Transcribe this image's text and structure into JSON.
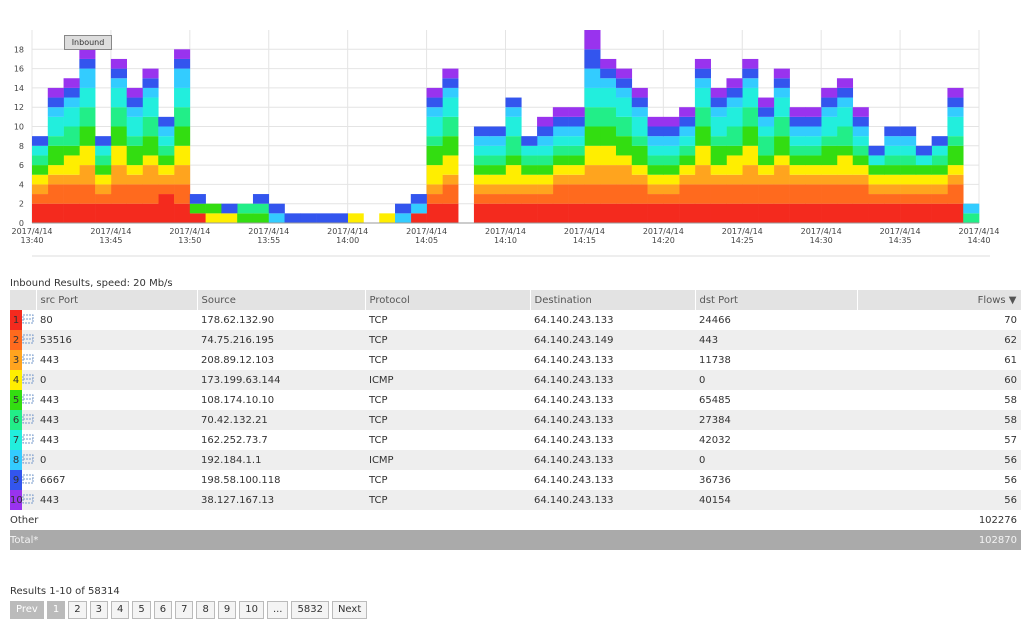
{
  "chart_data": {
    "type": "stacked-step-bar",
    "tooltip": "Inbound",
    "categories": [
      [
        "2017/4/14",
        "13:40"
      ],
      null,
      null,
      null,
      null,
      [
        "2017/4/14",
        "13:45"
      ],
      null,
      null,
      null,
      null,
      [
        "2017/4/14",
        "13:50"
      ],
      null,
      null,
      null,
      null,
      [
        "2017/4/14",
        "13:55"
      ],
      null,
      null,
      null,
      null,
      [
        "2017/4/14",
        "14:00"
      ],
      null,
      null,
      null,
      null,
      [
        "2017/4/14",
        "14:05"
      ],
      null,
      null,
      null,
      null,
      [
        "2017/4/14",
        "14:10"
      ],
      null,
      null,
      null,
      null,
      [
        "2017/4/14",
        "14:15"
      ],
      null,
      null,
      null,
      null,
      [
        "2017/4/14",
        "14:20"
      ],
      null,
      null,
      null,
      null,
      [
        "2017/4/14",
        "14:25"
      ],
      null,
      null,
      null,
      null,
      [
        "2017/4/14",
        "14:30"
      ],
      null,
      null,
      null,
      null,
      [
        "2017/4/14",
        "14:35"
      ],
      null,
      null,
      null,
      null,
      [
        "2017/4/14",
        "14:40"
      ]
    ],
    "ylim": [
      0,
      20
    ],
    "yticks": [
      0,
      2,
      4,
      6,
      8,
      10,
      12,
      14,
      16,
      18
    ],
    "grid": true,
    "series": [
      {
        "color": "#f42a1e",
        "values": [
          2,
          2,
          2,
          2,
          2,
          2,
          2,
          2,
          3,
          2,
          1,
          0,
          0,
          0,
          0,
          0,
          0,
          0,
          0,
          0,
          0,
          0,
          0,
          0,
          1,
          2,
          2,
          0,
          2,
          2,
          2,
          2,
          2,
          2,
          2,
          2,
          2,
          2,
          2,
          2,
          2,
          2,
          2,
          2,
          2,
          2,
          2,
          2,
          2,
          2,
          2,
          2,
          2,
          2,
          2,
          2,
          2,
          2,
          2,
          0,
          null
        ]
      },
      {
        "color": "#ff6a1e",
        "values": [
          1,
          2,
          2,
          2,
          1,
          2,
          2,
          2,
          1,
          2,
          0,
          0,
          0,
          0,
          0,
          0,
          0,
          0,
          0,
          0,
          0,
          0,
          0,
          0,
          0,
          1,
          2,
          0,
          1,
          1,
          1,
          1,
          1,
          2,
          2,
          2,
          2,
          2,
          2,
          1,
          1,
          2,
          2,
          2,
          2,
          2,
          2,
          2,
          2,
          2,
          2,
          2,
          2,
          1,
          1,
          1,
          1,
          1,
          2,
          0,
          null
        ]
      },
      {
        "color": "#ffa41e",
        "values": [
          1,
          1,
          1,
          2,
          1,
          2,
          1,
          2,
          1,
          2,
          0,
          0,
          0,
          0,
          0,
          0,
          0,
          0,
          0,
          0,
          0,
          0,
          0,
          0,
          0,
          1,
          1,
          0,
          1,
          1,
          1,
          1,
          1,
          1,
          1,
          2,
          2,
          2,
          1,
          1,
          1,
          1,
          2,
          1,
          1,
          2,
          1,
          2,
          1,
          1,
          1,
          1,
          1,
          1,
          1,
          1,
          1,
          1,
          1,
          0,
          null
        ]
      },
      {
        "color": "#ffee00",
        "values": [
          1,
          1,
          2,
          2,
          1,
          2,
          1,
          1,
          1,
          2,
          0,
          1,
          1,
          0,
          0,
          0,
          0,
          0,
          0,
          0,
          1,
          0,
          1,
          0,
          0,
          2,
          2,
          0,
          1,
          1,
          2,
          1,
          1,
          1,
          1,
          2,
          2,
          1,
          1,
          1,
          1,
          1,
          2,
          1,
          2,
          2,
          1,
          1,
          1,
          1,
          1,
          2,
          1,
          1,
          1,
          1,
          1,
          1,
          1,
          0,
          null
        ]
      },
      {
        "color": "#33dd11",
        "values": [
          1,
          2,
          1,
          2,
          1,
          2,
          2,
          2,
          1,
          2,
          1,
          1,
          0,
          1,
          1,
          0,
          0,
          0,
          0,
          0,
          0,
          0,
          0,
          0,
          0,
          2,
          2,
          0,
          1,
          1,
          1,
          1,
          1,
          1,
          1,
          2,
          2,
          2,
          2,
          1,
          1,
          1,
          2,
          2,
          1,
          2,
          1,
          2,
          1,
          1,
          2,
          1,
          1,
          1,
          1,
          1,
          1,
          1,
          2,
          0,
          null
        ]
      },
      {
        "color": "#22ee88",
        "values": [
          1,
          1,
          2,
          2,
          1,
          2,
          1,
          2,
          1,
          2,
          0,
          0,
          0,
          1,
          1,
          0,
          0,
          0,
          0,
          0,
          0,
          0,
          0,
          0,
          0,
          1,
          2,
          0,
          1,
          1,
          2,
          1,
          1,
          1,
          1,
          2,
          2,
          2,
          1,
          1,
          1,
          1,
          2,
          1,
          2,
          2,
          2,
          2,
          1,
          1,
          1,
          2,
          1,
          0,
          1,
          1,
          0,
          1,
          1,
          1,
          null
        ]
      },
      {
        "color": "#22eedd",
        "values": [
          1,
          2,
          2,
          2,
          1,
          2,
          2,
          2,
          1,
          2,
          0,
          0,
          0,
          0,
          0,
          0,
          0,
          0,
          0,
          0,
          0,
          0,
          0,
          0,
          0,
          2,
          2,
          0,
          1,
          1,
          2,
          1,
          1,
          1,
          1,
          2,
          2,
          2,
          2,
          1,
          1,
          1,
          2,
          2,
          2,
          2,
          1,
          2,
          1,
          1,
          2,
          2,
          1,
          1,
          1,
          1,
          1,
          1,
          2,
          0,
          null
        ]
      },
      {
        "color": "#33ccff",
        "values": [
          0,
          1,
          1,
          2,
          0,
          1,
          1,
          1,
          1,
          2,
          0,
          0,
          0,
          0,
          0,
          1,
          0,
          0,
          0,
          0,
          0,
          0,
          0,
          1,
          1,
          1,
          1,
          0,
          1,
          1,
          1,
          0,
          1,
          1,
          1,
          2,
          1,
          1,
          1,
          1,
          1,
          1,
          1,
          1,
          1,
          1,
          1,
          1,
          1,
          1,
          1,
          1,
          1,
          0,
          1,
          1,
          0,
          0,
          1,
          1,
          null
        ]
      },
      {
        "color": "#3355ee",
        "values": [
          1,
          1,
          1,
          1,
          1,
          1,
          1,
          1,
          1,
          1,
          1,
          0,
          1,
          0,
          1,
          1,
          1,
          1,
          1,
          1,
          0,
          0,
          0,
          1,
          1,
          1,
          1,
          0,
          1,
          1,
          1,
          1,
          1,
          1,
          1,
          2,
          1,
          1,
          1,
          1,
          1,
          1,
          1,
          1,
          1,
          1,
          1,
          1,
          1,
          1,
          1,
          1,
          1,
          1,
          1,
          1,
          1,
          1,
          1,
          0,
          null
        ]
      },
      {
        "color": "#9933ee",
        "values": [
          0,
          1,
          1,
          1,
          0,
          1,
          1,
          1,
          0,
          1,
          0,
          0,
          0,
          0,
          0,
          0,
          0,
          0,
          0,
          0,
          0,
          0,
          0,
          0,
          0,
          1,
          1,
          0,
          0,
          0,
          0,
          0,
          1,
          1,
          1,
          2,
          1,
          1,
          1,
          1,
          1,
          1,
          1,
          1,
          1,
          1,
          1,
          1,
          1,
          1,
          1,
          1,
          1,
          0,
          0,
          0,
          0,
          0,
          1,
          0,
          null
        ]
      }
    ]
  },
  "table": {
    "title": "Inbound Results, speed: 20 Mb/s",
    "columns": [
      "src Port",
      "Source",
      "Protocol",
      "Destination",
      "dst Port",
      "Flows ▼"
    ],
    "rows": [
      [
        "1",
        "80",
        "178.62.132.90",
        "TCP",
        "64.140.243.133",
        "24466",
        "70"
      ],
      [
        "2",
        "53516",
        "74.75.216.195",
        "TCP",
        "64.140.243.149",
        "443",
        "62"
      ],
      [
        "3",
        "443",
        "208.89.12.103",
        "TCP",
        "64.140.243.133",
        "11738",
        "61"
      ],
      [
        "4",
        "0",
        "173.199.63.144",
        "ICMP",
        "64.140.243.133",
        "0",
        "60"
      ],
      [
        "5",
        "443",
        "108.174.10.10",
        "TCP",
        "64.140.243.133",
        "65485",
        "58"
      ],
      [
        "6",
        "443",
        "70.42.132.21",
        "TCP",
        "64.140.243.133",
        "27384",
        "58"
      ],
      [
        "7",
        "443",
        "162.252.73.7",
        "TCP",
        "64.140.243.133",
        "42032",
        "57"
      ],
      [
        "8",
        "0",
        "192.184.1.1",
        "ICMP",
        "64.140.243.133",
        "0",
        "56"
      ],
      [
        "9",
        "6667",
        "198.58.100.118",
        "TCP",
        "64.140.243.133",
        "36736",
        "56"
      ],
      [
        "10",
        "443",
        "38.127.167.13",
        "TCP",
        "64.140.243.133",
        "40154",
        "56"
      ]
    ],
    "other": {
      "label": "Other",
      "flows": "102276"
    },
    "total": {
      "label": "Total*",
      "flows": "102870"
    }
  },
  "pagination": {
    "summary": "Results 1-10 of 58314",
    "buttons": [
      "Prev",
      "1",
      "2",
      "3",
      "4",
      "5",
      "6",
      "7",
      "8",
      "9",
      "10",
      "...",
      "5832",
      "Next"
    ]
  }
}
